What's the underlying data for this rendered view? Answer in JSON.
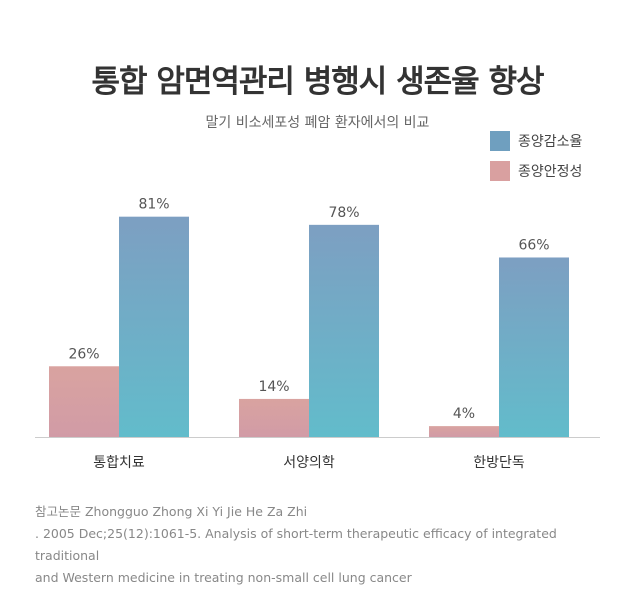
{
  "title": "통합 암면역관리 병행시 생존율 향상",
  "subtitle": "말기 비소세포성 폐암 환자에서의 비교",
  "colors": {
    "stability": "#d9a0a0",
    "reduction": "#6f9fbf",
    "baseline": "#cccccc"
  },
  "chart_data": {
    "type": "bar",
    "categories": [
      "통합치료",
      "서양의학",
      "한방단독"
    ],
    "series": [
      {
        "name": "종양안정성",
        "values": [
          26,
          14,
          4
        ],
        "labels": [
          "26%",
          "14%",
          "4%"
        ]
      },
      {
        "name": "종양감소율",
        "values": [
          81,
          78,
          66
        ],
        "labels": [
          "81%",
          "78%",
          "66%"
        ]
      }
    ],
    "ylim": [
      0,
      100
    ],
    "legend_position": "top-right",
    "grid": false
  },
  "legend": {
    "items": [
      {
        "label": "종양감소율"
      },
      {
        "label": "종양안정성"
      }
    ]
  },
  "reference": {
    "line1": "참고논문 Zhongguo Zhong Xi Yi Jie He Za Zhi",
    "line2": ". 2005 Dec;25(12):1061-5. Analysis of short-term therapeutic efficacy of integrated traditional",
    "line3": "and Western medicine in treating non-small cell lung cancer"
  }
}
